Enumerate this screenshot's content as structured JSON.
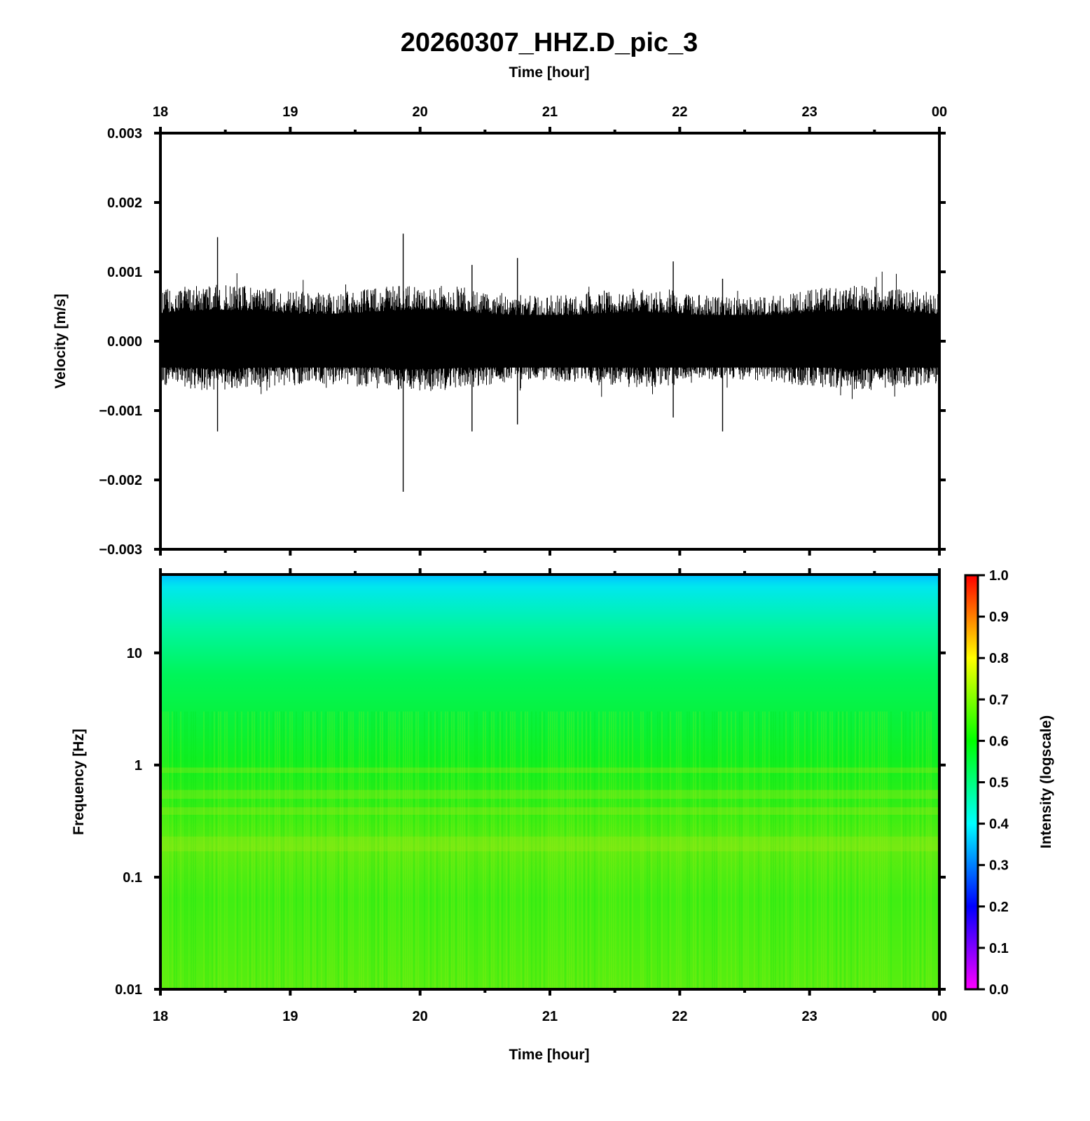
{
  "chart_data": [
    {
      "type": "line",
      "title": "20260307_HHZ.D_pic_3",
      "top_xlabel": "Time [hour]",
      "ylabel": "Velocity [m/s]",
      "x_tick_labels": [
        "18",
        "19",
        "20",
        "21",
        "22",
        "23",
        "00"
      ],
      "y_tick_labels": [
        "0.003",
        "0.002",
        "0.001",
        "0.000",
        "−0.001",
        "−0.002",
        "−0.003"
      ],
      "xlim_hours": [
        18,
        24
      ],
      "ylim": [
        -0.003,
        0.003
      ],
      "series": [
        {
          "typical_envelope_upper": 0.0008,
          "typical_envelope_lower": -0.0007,
          "spikes": [
            {
              "x": 18.44,
              "ymax": 0.0015,
              "ymin": -0.0013
            },
            {
              "x": 19.87,
              "ymax": 0.00155,
              "ymin": -0.00217
            },
            {
              "x": 20.4,
              "ymax": 0.0011,
              "ymin": -0.0013
            },
            {
              "x": 20.75,
              "ymax": 0.0012,
              "ymin": -0.0012
            },
            {
              "x": 21.95,
              "ymax": 0.00115,
              "ymin": -0.0011
            },
            {
              "x": 22.33,
              "ymax": 0.0009,
              "ymin": -0.0013
            }
          ]
        }
      ],
      "color": "#000000"
    },
    {
      "type": "heatmap",
      "xlabel": "Time [hour]",
      "ylabel": "Frequency [Hz]",
      "x_tick_labels": [
        "18",
        "19",
        "20",
        "21",
        "22",
        "23",
        "00"
      ],
      "y_tick_labels": [
        "10",
        "1",
        "0.1",
        "0.01"
      ],
      "y_scale": "log",
      "ylim_hz": [
        0.01,
        50
      ],
      "colorbar": {
        "label": "Intensity (logscale)",
        "range": [
          0.0,
          1.0
        ],
        "tick_labels": [
          "1.0",
          "0.9",
          "0.8",
          "0.7",
          "0.6",
          "0.5",
          "0.4",
          "0.3",
          "0.2",
          "0.1",
          "0.0"
        ],
        "colormap": [
          "#ff00ff",
          "#0000ff",
          "#00ffff",
          "#00ff00",
          "#ffff00",
          "#ff0000"
        ]
      },
      "intensity_profile": [
        {
          "freq_hz": 50,
          "intensity": 0.42
        },
        {
          "freq_hz": 20,
          "intensity": 0.5
        },
        {
          "freq_hz": 10,
          "intensity": 0.58
        },
        {
          "freq_hz": 1,
          "intensity": 0.62
        },
        {
          "freq_hz": 0.2,
          "intensity": 0.68
        },
        {
          "freq_hz": 0.01,
          "intensity": 0.63
        }
      ]
    }
  ]
}
